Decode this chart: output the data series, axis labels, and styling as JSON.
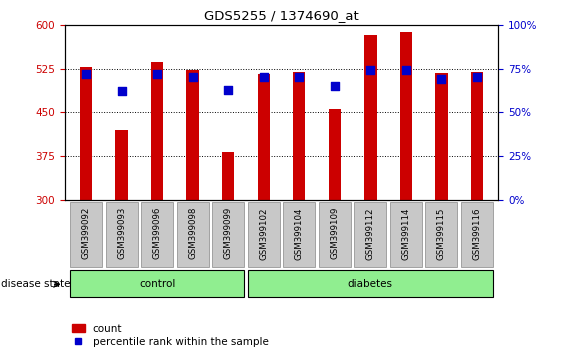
{
  "title": "GDS5255 / 1374690_at",
  "samples": [
    "GSM399092",
    "GSM399093",
    "GSM399096",
    "GSM399098",
    "GSM399099",
    "GSM399102",
    "GSM399104",
    "GSM399109",
    "GSM399112",
    "GSM399114",
    "GSM399115",
    "GSM399116"
  ],
  "count_values": [
    527,
    420,
    537,
    522,
    383,
    516,
    519,
    455,
    583,
    588,
    518,
    520
  ],
  "percentile_values": [
    72,
    62,
    72,
    70,
    63,
    70,
    70,
    65,
    74,
    74,
    69,
    70
  ],
  "ylim_left": [
    300,
    600
  ],
  "ylim_right": [
    0,
    100
  ],
  "yticks_left": [
    300,
    375,
    450,
    525,
    600
  ],
  "yticks_right": [
    0,
    25,
    50,
    75,
    100
  ],
  "ytick_labels_right": [
    "0%",
    "25%",
    "50%",
    "75%",
    "100%"
  ],
  "bar_color": "#cc0000",
  "dot_color": "#0000cc",
  "bar_width": 0.35,
  "group_control_indices": [
    0,
    1,
    2,
    3,
    4
  ],
  "group_diabetes_indices": [
    5,
    6,
    7,
    8,
    9,
    10,
    11
  ],
  "xlabel": "disease state",
  "legend_count_label": "count",
  "legend_percentile_label": "percentile rank within the sample",
  "axis_label_color_left": "#cc0000",
  "axis_label_color_right": "#0000cc",
  "tick_label_bg": "#c8c8c8"
}
